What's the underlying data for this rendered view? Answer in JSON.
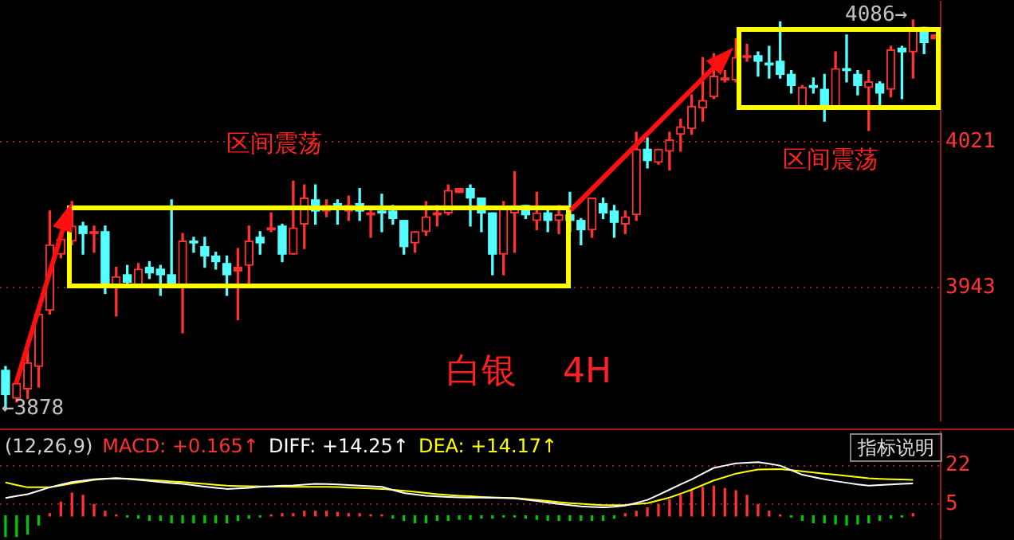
{
  "chart_data": [
    {
      "type": "candlestick",
      "categories": [
        null,
        null,
        null,
        null,
        null,
        null,
        null,
        null,
        null,
        null,
        null,
        null,
        null,
        null,
        null,
        null,
        null,
        null,
        null,
        null,
        null,
        null,
        null,
        null,
        null,
        null,
        null,
        null,
        null,
        null,
        null,
        null,
        null,
        null,
        null,
        null,
        null,
        null,
        null,
        null,
        null,
        null,
        null,
        null,
        null,
        null,
        null,
        null,
        null,
        null,
        null,
        null,
        null,
        null,
        null,
        null,
        null,
        null,
        null,
        null,
        null,
        null,
        null,
        null,
        null,
        null,
        null,
        null,
        null,
        null,
        null,
        null,
        null,
        null,
        null,
        null,
        null,
        null,
        null,
        null,
        null,
        null,
        null,
        null,
        null
      ],
      "ohlc": [
        [
          3899,
          3901,
          3878,
          3886
        ],
        [
          3884,
          3894,
          3882,
          3892
        ],
        [
          3889,
          3910,
          3884,
          3903
        ],
        [
          3901,
          3933,
          3890,
          3929
        ],
        [
          3931,
          3984,
          3929,
          3966
        ],
        [
          3961,
          3972,
          3959,
          3969
        ],
        [
          3968,
          3989,
          3966,
          3976
        ],
        [
          3976,
          3978,
          3961,
          3972
        ],
        [
          3972,
          3976,
          3962,
          3973
        ],
        [
          3973,
          3976,
          3940,
          3944
        ],
        [
          3944,
          3954,
          3928,
          3949
        ],
        [
          3950,
          3955,
          3944,
          3946
        ],
        [
          3944,
          3956,
          3943,
          3953
        ],
        [
          3954,
          3957,
          3948,
          3951
        ],
        [
          3953,
          3955,
          3939,
          3950
        ],
        [
          3950,
          3990,
          3944,
          3945
        ],
        [
          3944,
          3972,
          3919,
          3968
        ],
        [
          3968,
          3970,
          3962,
          3967
        ],
        [
          3965,
          3970,
          3954,
          3960
        ],
        [
          3960,
          3962,
          3953,
          3957
        ],
        [
          3956,
          3960,
          3939,
          3950
        ],
        [
          3952,
          3964,
          3926,
          3954
        ],
        [
          3955,
          3976,
          3945,
          3968
        ],
        [
          3970,
          3973,
          3961,
          3967
        ],
        [
          3974,
          3983,
          3973,
          3975
        ],
        [
          3976,
          3977,
          3957,
          3961
        ],
        [
          3961,
          4000,
          3961,
          3975
        ],
        [
          3977,
          3998,
          3964,
          3991
        ],
        [
          3990,
          3998,
          3977,
          3984
        ],
        [
          3984,
          3990,
          3981,
          3987
        ],
        [
          3988,
          3990,
          3977,
          3986
        ],
        [
          3984,
          3992,
          3979,
          3987
        ],
        [
          3988,
          3996,
          3979,
          3984
        ],
        [
          3982,
          3985,
          3970,
          3983
        ],
        [
          3984,
          3993,
          3973,
          3983
        ],
        [
          3984,
          3987,
          3977,
          3980
        ],
        [
          3979,
          3979,
          3961,
          3965
        ],
        [
          3967,
          3973,
          3962,
          3973
        ],
        [
          3973,
          3989,
          3971,
          3981
        ],
        [
          3982,
          3987,
          3976,
          3983
        ],
        [
          3983,
          3998,
          3982,
          3995
        ],
        [
          3994,
          3996,
          3994,
          3996
        ],
        [
          3996,
          3998,
          3976,
          3991
        ],
        [
          3991,
          3991,
          3973,
          3983
        ],
        [
          3983,
          3983,
          3950,
          3961
        ],
        [
          3961,
          3989,
          3950,
          3986
        ],
        [
          3983,
          4005,
          3962,
          3986
        ],
        [
          3987,
          3987,
          3980,
          3982
        ],
        [
          3979,
          3994,
          3974,
          3983
        ],
        [
          3983,
          3986,
          3973,
          3979
        ],
        [
          3979,
          3987,
          3972,
          3982
        ],
        [
          3982,
          3994,
          3973,
          3979
        ],
        [
          3979,
          3980,
          3966,
          3974
        ],
        [
          3974,
          3991,
          3970,
          3991
        ],
        [
          3988,
          3991,
          3980,
          3983
        ],
        [
          3984,
          3987,
          3970,
          3978
        ],
        [
          3977,
          3984,
          3972,
          3981
        ],
        [
          3982,
          4026,
          3979,
          4017
        ],
        [
          4017,
          4023,
          4007,
          4011
        ],
        [
          4010,
          4017,
          4009,
          4017
        ],
        [
          4016,
          4026,
          4006,
          4022
        ],
        [
          4025,
          4033,
          4016,
          4029
        ],
        [
          4028,
          4046,
          4025,
          4040
        ],
        [
          4039,
          4066,
          4032,
          4043
        ],
        [
          4045,
          4068,
          4044,
          4056
        ],
        [
          4054,
          4059,
          4053,
          4055
        ],
        [
          4054,
          4076,
          4053,
          4066
        ],
        [
          4066,
          4073,
          4064,
          4067
        ],
        [
          4067,
          4069,
          4056,
          4064
        ],
        [
          4063,
          4072,
          4055,
          4062
        ],
        [
          4064,
          4085,
          4055,
          4057
        ],
        [
          4057,
          4059,
          4047,
          4051
        ],
        [
          4039,
          4051,
          4039,
          4050
        ],
        [
          4051,
          4055,
          4047,
          4050
        ],
        [
          4049,
          4057,
          4032,
          4039
        ],
        [
          4039,
          4069,
          4039,
          4060
        ],
        [
          4060,
          4078,
          4053,
          4059
        ],
        [
          4057,
          4059,
          4046,
          4051
        ],
        [
          4050,
          4059,
          4027,
          4053
        ],
        [
          4052,
          4053,
          4040,
          4047
        ],
        [
          4049,
          4072,
          4045,
          4070
        ],
        [
          4071,
          4072,
          4044,
          4069
        ],
        [
          4069,
          4086,
          4055,
          4081
        ],
        [
          4082,
          4082,
          4068,
          4074
        ],
        [
          4076,
          4078,
          4076,
          4078
        ]
      ],
      "colors": [
        "#54ffff",
        "#ff3232",
        "#ff3232",
        "#ff3232",
        "#ff3232",
        "#ff3232",
        "#ff3232",
        "#54ffff",
        "#ff3232",
        "#54ffff",
        "#ff3232",
        "#54ffff",
        "#ff3232",
        "#54ffff",
        "#54ffff",
        "#54ffff",
        "#ff3232",
        "#54ffff",
        "#54ffff",
        "#54ffff",
        "#54ffff",
        "#ff3232",
        "#ff3232",
        "#54ffff",
        "#ff3232",
        "#54ffff",
        "#ff3232",
        "#ff3232",
        "#54ffff",
        "#ff3232",
        "#54ffff",
        "#ff3232",
        "#54ffff",
        "#ff3232",
        "#54ffff",
        "#54ffff",
        "#54ffff",
        "#ff3232",
        "#ff3232",
        "#ff3232",
        "#ff3232",
        "#ff3232",
        "#54ffff",
        "#54ffff",
        "#54ffff",
        "#ff3232",
        "#ff3232",
        "#54ffff",
        "#ff3232",
        "#54ffff",
        "#ff3232",
        "#54ffff",
        "#54ffff",
        "#ff3232",
        "#54ffff",
        "#54ffff",
        "#ff3232",
        "#ff3232",
        "#54ffff",
        "#ff3232",
        "#ff3232",
        "#ff3232",
        "#ff3232",
        "#ff3232",
        "#ff3232",
        "#ff3232",
        "#ff3232",
        "#ff3232",
        "#54ffff",
        "#54ffff",
        "#54ffff",
        "#54ffff",
        "#ff3232",
        "#54ffff",
        "#54ffff",
        "#ff3232",
        "#54ffff",
        "#54ffff",
        "#ff3232",
        "#54ffff",
        "#ff3232",
        "#54ffff",
        "#ff3232",
        "#54ffff",
        "#ff3232"
      ],
      "ylim": [
        3872,
        4096
      ],
      "yticks": [
        3943,
        4021
      ],
      "grid": "y",
      "tick_labels": "y",
      "annotations": [
        "4086→",
        "←3878",
        "区间震荡",
        "区间震荡",
        "白银 4H"
      ]
    },
    {
      "type": "line",
      "title": "(12,26,9)",
      "categories": [
        null,
        null,
        null,
        null,
        null,
        null,
        null,
        null,
        null,
        null,
        null,
        null,
        null,
        null,
        null,
        null,
        null,
        null,
        null,
        null,
        null,
        null,
        null,
        null,
        null,
        null,
        null,
        null,
        null,
        null,
        null,
        null,
        null,
        null,
        null,
        null,
        null,
        null,
        null,
        null,
        null,
        null,
        null,
        null,
        null,
        null,
        null,
        null,
        null,
        null,
        null,
        null,
        null,
        null,
        null,
        null,
        null,
        null,
        null,
        null,
        null,
        null,
        null,
        null,
        null,
        null,
        null,
        null,
        null,
        null,
        null,
        null,
        null,
        null,
        null,
        null,
        null,
        null,
        null,
        null,
        null,
        null,
        null,
        null,
        null
      ],
      "series": [
        {
          "name": "MACD: +0.165↑",
          "type": "bar",
          "color": "#ff3232",
          "colors": [
            "#00c800",
            "#00c800",
            "#00c800",
            "#00c800",
            "#ff3232",
            "#ff3232",
            "#ff3232",
            "#ff3232",
            "#ff3232",
            "#ff3232",
            "#ff3232",
            "#00c800",
            "#00c800",
            "#00c800",
            "#00c800",
            "#00c800",
            "#00c800",
            "#00c800",
            "#00c800",
            "#00c800",
            "#00c800",
            "#00c800",
            "#00c800",
            "#00c800",
            "#ff3232",
            "#ff3232",
            "#ff3232",
            "#ff3232",
            "#ff3232",
            "#ff3232",
            "#ff3232",
            "#ff3232",
            "#ff3232",
            "#ff3232",
            "#ff3232",
            "#00c800",
            "#00c800",
            "#00c800",
            "#00c800",
            "#00c800",
            "#00c800",
            "#00c800",
            "#00c800",
            "#00c800",
            "#00c800",
            "#00c800",
            "#00c800",
            "#00c800",
            "#00c800",
            "#00c800",
            "#00c800",
            "#00c800",
            "#00c800",
            "#00c800",
            "#00c800",
            "#00c800",
            "#ff3232",
            "#ff3232",
            "#ff3232",
            "#ff3232",
            "#ff3232",
            "#ff3232",
            "#ff3232",
            "#ff3232",
            "#ff3232",
            "#ff3232",
            "#ff3232",
            "#ff3232",
            "#ff3232",
            "#ff3232",
            "#ff3232",
            "#00c800",
            "#00c800",
            "#00c800",
            "#00c800",
            "#00c800",
            "#00c800",
            "#00c800",
            "#00c800",
            "#00c800",
            "#00c800",
            "#00c800",
            "#ff3232",
            "#00c800",
            "#00c800"
          ],
          "values": [
            -9,
            -9,
            -8,
            -4,
            1,
            6,
            10,
            9,
            5,
            2,
            0.5,
            -0.5,
            -1,
            -2,
            -2,
            -3,
            -3,
            -3,
            -3,
            -3,
            -3,
            -2,
            -1,
            -0.5,
            0.5,
            1,
            1,
            2,
            2,
            2,
            1.5,
            1,
            1,
            0.5,
            0.5,
            -1,
            -2,
            -3,
            -3,
            -2,
            -2,
            -1.5,
            -1.5,
            -1,
            -1,
            -0.5,
            -0.5,
            -1,
            -1.5,
            -2,
            -2,
            -2,
            -2,
            -2,
            -2,
            -1,
            1,
            2,
            3.5,
            5,
            7,
            9,
            11,
            12.5,
            13,
            12,
            11,
            9,
            5,
            2,
            0.5,
            -0.5,
            -2,
            -3,
            -3,
            -3.5,
            -4,
            -3.5,
            -3,
            -2,
            -1,
            -0.5,
            1,
            null,
            null
          ]
        },
        {
          "name": "DIFF: +14.25↑",
          "color": "#ffffff",
          "values": [
            7.8,
            8.7,
            9.5,
            11,
            12.5,
            13.7,
            14.8,
            15.4,
            16,
            16.3,
            16.5,
            16.2,
            15.8,
            15.3,
            14.8,
            14.4,
            14,
            13.4,
            12.8,
            12.3,
            11.8,
            12,
            12.3,
            12.7,
            13,
            13.2,
            13.3,
            13.7,
            14,
            13.9,
            13.8,
            13.5,
            13.2,
            13,
            12.7,
            11.3,
            10,
            9.4,
            8.8,
            8.5,
            8.3,
            8.1,
            8,
            8,
            7.9,
            7.8,
            7.7,
            7.1,
            6.5,
            5.8,
            5.2,
            4.7,
            4.2,
            3.9,
            3.7,
            4,
            4.5,
            5.7,
            7,
            9.2,
            11.5,
            13.8,
            16,
            18.5,
            21,
            22,
            23,
            23.3,
            23.5,
            22.8,
            22,
            20,
            18,
            17,
            16,
            15.2,
            14.5,
            13.8,
            13.2,
            13.5,
            13.8,
            14,
            14.2,
            null,
            null
          ]
        },
        {
          "name": "DEA: +14.17↑",
          "color": "#ffff00",
          "values": [
            14.6,
            13.5,
            12.5,
            12.5,
            12.5,
            13.3,
            14.2,
            15,
            15.8,
            16.2,
            16.5,
            16.3,
            16,
            15.7,
            15.4,
            15.1,
            14.8,
            14.4,
            14,
            13.6,
            13.2,
            13.1,
            13,
            12.9,
            12.8,
            12.8,
            12.7,
            12.7,
            12.7,
            12.7,
            12.6,
            12.4,
            12.2,
            12,
            11.8,
            11.4,
            11,
            10.5,
            10,
            9.5,
            9.1,
            8.8,
            8.6,
            8.3,
            8.1,
            7.9,
            7.8,
            7.4,
            7,
            6.5,
            6,
            5.6,
            5.3,
            5,
            4.7,
            4.7,
            4.8,
            5.2,
            5.6,
            6.8,
            8,
            9.7,
            11.5,
            13.5,
            15.5,
            17,
            18.5,
            19.4,
            20.3,
            20.4,
            20.5,
            20,
            19.5,
            19,
            18.5,
            18,
            17.5,
            17,
            16.5,
            16.2,
            16,
            15.9,
            15.8,
            null,
            null
          ]
        }
      ],
      "ylim": [
        -10,
        37
      ],
      "yticks": [
        5,
        22
      ],
      "grid": "y",
      "tick_labels": "y",
      "legend": "top left",
      "annotations": [
        "指标说明"
      ]
    }
  ]
}
